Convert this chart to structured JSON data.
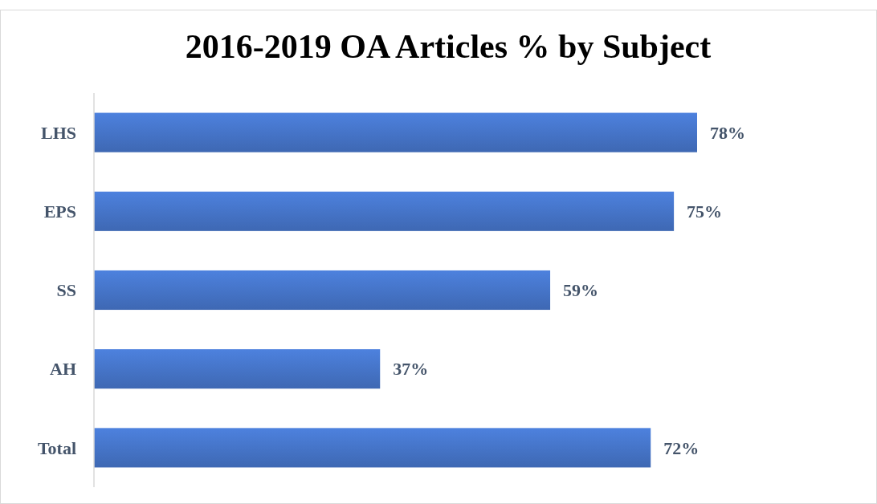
{
  "chart_data": {
    "type": "bar",
    "orientation": "horizontal",
    "title": "2016-2019 OA Articles % by Subject",
    "categories": [
      "LHS",
      "EPS",
      "SS",
      "AH",
      "Total"
    ],
    "values": [
      78,
      75,
      59,
      37,
      72
    ],
    "color": "#4472c4",
    "value_labels": [
      "78%",
      "75%",
      "59%",
      "37%",
      "72%"
    ]
  }
}
